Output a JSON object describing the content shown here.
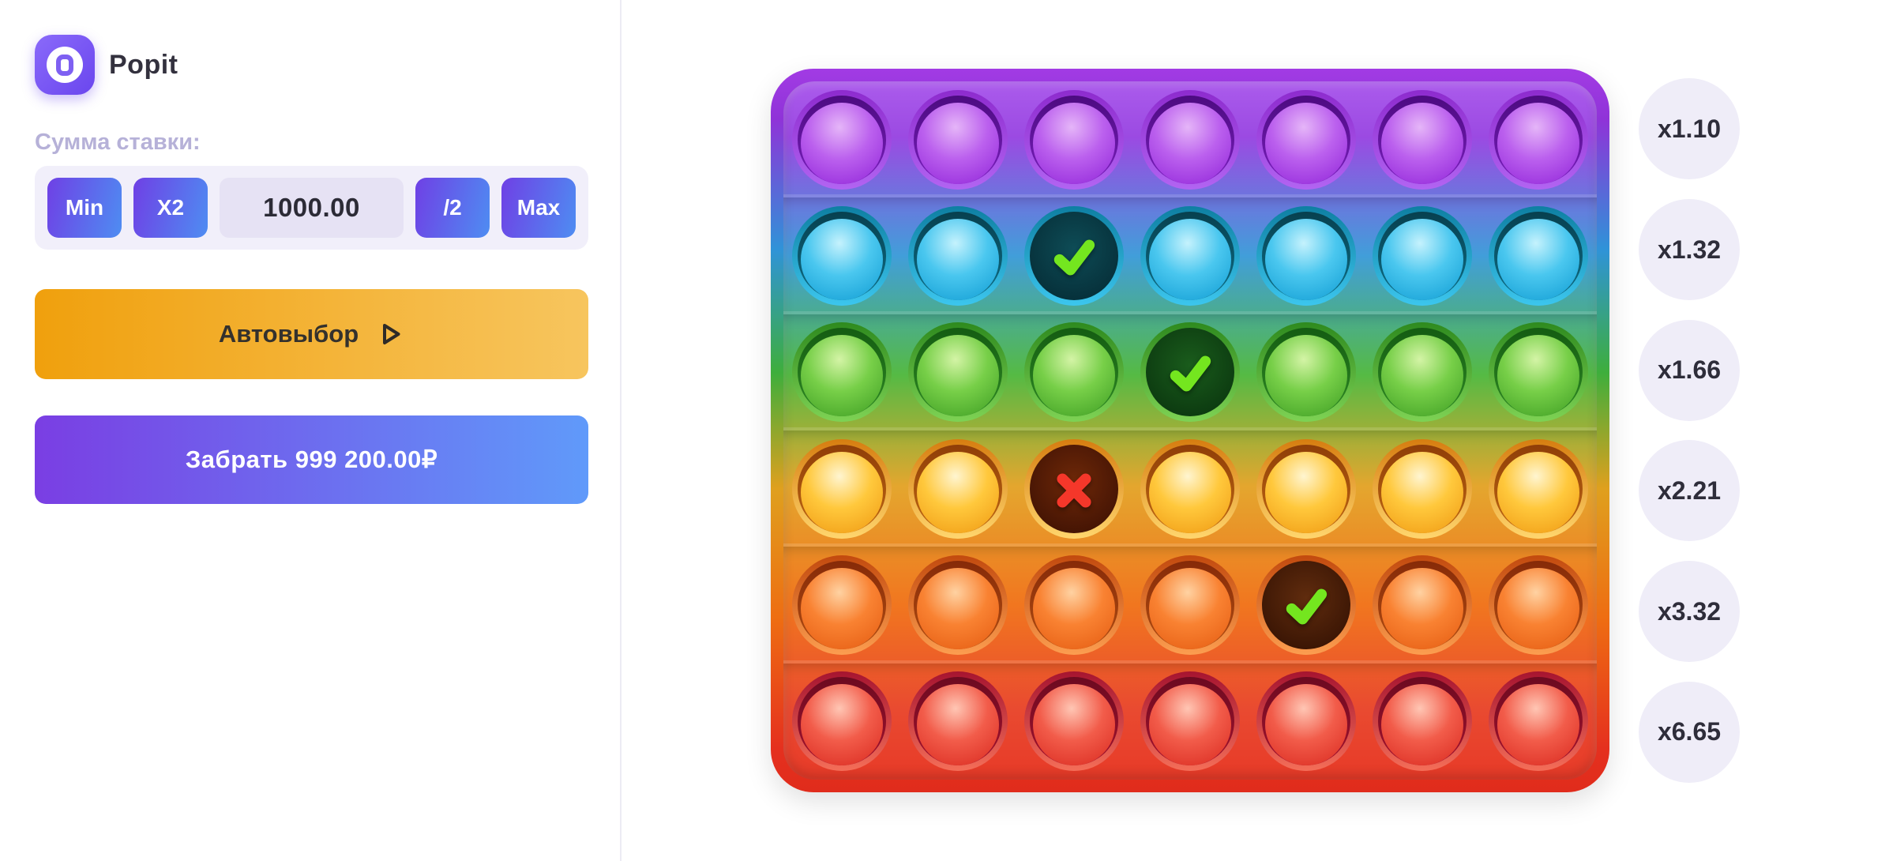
{
  "app": {
    "title": "Popit"
  },
  "bet": {
    "label": "Сумма ставки:",
    "min_label": "Min",
    "double_label": "X2",
    "amount": "1000.00",
    "half_label": "/2",
    "max_label": "Max"
  },
  "actions": {
    "auto_label": "Автовыбор",
    "collect_label": "Забрать 999 200.00₽"
  },
  "icons": {
    "logo": "popit-logo-icon",
    "auto_play": "play-icon",
    "popped_win": "check-icon",
    "popped_lose": "cross-icon"
  },
  "colors": {
    "accent_purple": "#7A3EE3",
    "accent_blue": "#609AFA",
    "accent_orange": "#F0A00D",
    "bet_bar_bg": "#F1EFFA",
    "bet_value_bg": "#E6E2F4",
    "badge_bg": "#EFEDF8",
    "check_green": "#74E61F",
    "cross_red": "#F5372A"
  },
  "board": {
    "columns": 7,
    "rows": [
      {
        "name": "purple",
        "multiplier": "x1.10",
        "cells": [
          "idle",
          "idle",
          "idle",
          "idle",
          "idle",
          "idle",
          "idle"
        ],
        "colors": {
          "rim_top": "#8D2BCE",
          "rim_bottom": "#B264F2",
          "ring_top": "#4C0B80",
          "ring_bottom": "#7A1FBE",
          "ball_hi": "#E5B5F8",
          "ball_mid": "#BB60EE",
          "ball_lo": "#8F23D8",
          "hole_in": "#3A0A60",
          "hole_out": "#240540"
        }
      },
      {
        "name": "cyan",
        "multiplier": "x1.32",
        "cells": [
          "idle",
          "idle",
          "check",
          "idle",
          "idle",
          "idle",
          "idle"
        ],
        "colors": {
          "rim_top": "#0E7FA2",
          "rim_bottom": "#3CC6EE",
          "ring_top": "#07404F",
          "ring_bottom": "#0E6F88",
          "ball_hi": "#C5F2FD",
          "ball_mid": "#4AC7EF",
          "ball_lo": "#0E9BD2",
          "hole_in": "#0E4C56",
          "hole_out": "#06303A"
        }
      },
      {
        "name": "green",
        "multiplier": "x1.66",
        "cells": [
          "idle",
          "idle",
          "idle",
          "check",
          "idle",
          "idle",
          "idle"
        ],
        "colors": {
          "rim_top": "#2E8A1E",
          "rim_bottom": "#7ED254",
          "ring_top": "#145C12",
          "ring_bottom": "#2F8A24",
          "ball_hi": "#D4F4A6",
          "ball_mid": "#77CF48",
          "ball_lo": "#3C9C22",
          "hole_in": "#1A5C1C",
          "hole_out": "#0C3A10"
        }
      },
      {
        "name": "gold",
        "multiplier": "x2.21",
        "cells": [
          "idle",
          "idle",
          "cross",
          "idle",
          "idle",
          "idle",
          "idle"
        ],
        "colors": {
          "rim_top": "#D67D10",
          "rim_bottom": "#FFD66E",
          "ring_top": "#8F3E08",
          "ring_bottom": "#C06812",
          "ball_hi": "#FFF5D0",
          "ball_mid": "#FFC83C",
          "ball_lo": "#EF9710",
          "hole_in": "#6E2808",
          "hole_out": "#441404"
        }
      },
      {
        "name": "orange",
        "multiplier": "x3.32",
        "cells": [
          "idle",
          "idle",
          "idle",
          "idle",
          "check",
          "idle",
          "idle"
        ],
        "colors": {
          "rim_top": "#C24A0E",
          "rim_bottom": "#FC9E50",
          "ring_top": "#862A08",
          "ring_bottom": "#B24E12",
          "ball_hi": "#FFD2A2",
          "ball_mid": "#F98232",
          "ball_lo": "#E45A10",
          "hole_in": "#602C0E",
          "hole_out": "#3A1504"
        }
      },
      {
        "name": "red",
        "multiplier": "x6.65",
        "cells": [
          "idle",
          "idle",
          "idle",
          "idle",
          "idle",
          "idle",
          "idle"
        ],
        "colors": {
          "rim_top": "#A61430",
          "rim_bottom": "#F46E58",
          "ring_top": "#6C0A20",
          "ring_bottom": "#A4122E",
          "ball_hi": "#FFC6B4",
          "ball_mid": "#F25C4A",
          "ball_lo": "#D9281E",
          "hole_in": "#520A1A",
          "hole_out": "#32060F"
        }
      }
    ]
  }
}
